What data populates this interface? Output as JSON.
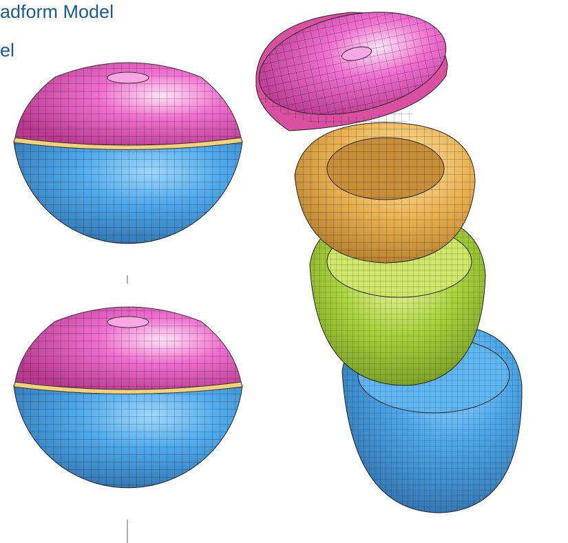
{
  "header": {
    "title_line_1": "adform Model",
    "title_line_2": "el"
  }
}
